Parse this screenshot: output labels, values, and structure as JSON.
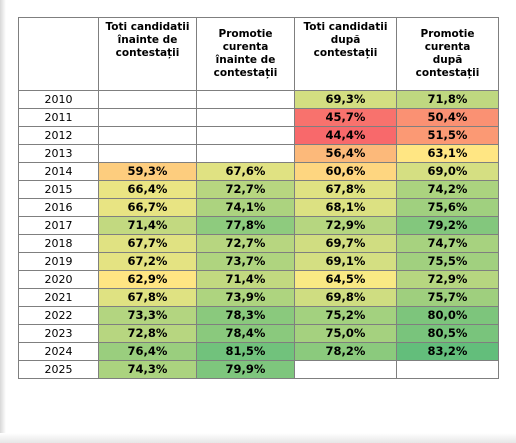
{
  "table": {
    "headers": [
      "",
      [
        "Toti candidatii",
        "înainte de",
        "contestații"
      ],
      [
        "Promotie",
        "curenta",
        "înainte de",
        "contestații"
      ],
      [
        "Toti candidatii",
        "după",
        "contestații"
      ],
      [
        "Promotie",
        "curenta",
        "după",
        "contestații"
      ]
    ],
    "rows": [
      {
        "year": "2010",
        "cells": [
          "",
          "",
          "69,3%",
          "71,8%"
        ]
      },
      {
        "year": "2011",
        "cells": [
          "",
          "",
          "45,7%",
          "50,4%"
        ]
      },
      {
        "year": "2012",
        "cells": [
          "",
          "",
          "44,4%",
          "51,5%"
        ]
      },
      {
        "year": "2013",
        "cells": [
          "",
          "",
          "56,4%",
          "63,1%"
        ]
      },
      {
        "year": "2014",
        "cells": [
          "59,3%",
          "67,6%",
          "60,6%",
          "69,0%"
        ]
      },
      {
        "year": "2015",
        "cells": [
          "66,4%",
          "72,7%",
          "67,8%",
          "74,2%"
        ]
      },
      {
        "year": "2016",
        "cells": [
          "66,7%",
          "74,1%",
          "68,1%",
          "75,6%"
        ]
      },
      {
        "year": "2017",
        "cells": [
          "71,4%",
          "77,8%",
          "72,9%",
          "79,2%"
        ]
      },
      {
        "year": "2018",
        "cells": [
          "67,7%",
          "72,7%",
          "69,7%",
          "74,7%"
        ]
      },
      {
        "year": "2019",
        "cells": [
          "67,2%",
          "73,7%",
          "69,1%",
          "75,5%"
        ]
      },
      {
        "year": "2020",
        "cells": [
          "62,9%",
          "71,4%",
          "64,5%",
          "72,9%"
        ]
      },
      {
        "year": "2021",
        "cells": [
          "67,8%",
          "73,9%",
          "69,8%",
          "75,7%"
        ]
      },
      {
        "year": "2022",
        "cells": [
          "73,3%",
          "78,3%",
          "75,2%",
          "80,0%"
        ]
      },
      {
        "year": "2023",
        "cells": [
          "72,8%",
          "78,4%",
          "75,0%",
          "80,5%"
        ]
      },
      {
        "year": "2024",
        "cells": [
          "76,4%",
          "81,5%",
          "78,2%",
          "83,2%"
        ]
      },
      {
        "year": "2025",
        "cells": [
          "74,3%",
          "79,9%",
          "",
          ""
        ]
      }
    ],
    "colors": {
      "low": "#f8696b",
      "mid": "#ffeb84",
      "high": "#63be7b"
    }
  }
}
